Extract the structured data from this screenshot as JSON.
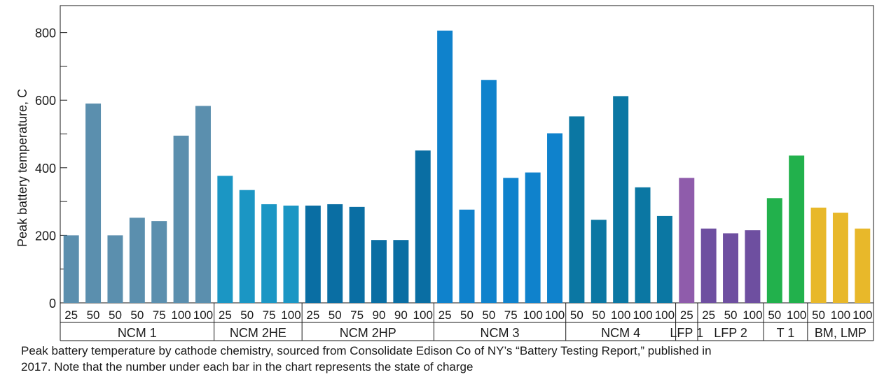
{
  "chart_data": {
    "type": "bar",
    "ylabel": "Peak battery temperature, C",
    "xlabel": "",
    "ylim": [
      0,
      880
    ],
    "yticks": [
      0,
      200,
      400,
      600,
      800
    ],
    "grid": false,
    "groups": [
      {
        "name": "NCM 1",
        "color": "#5b8fae",
        "categories": [
          "25",
          "50",
          "50",
          "50",
          "75",
          "100",
          "100"
        ],
        "values": [
          200,
          590,
          200,
          252,
          242,
          495,
          583
        ]
      },
      {
        "name": "NCM 2HE",
        "color": "#1b96c4",
        "categories": [
          "25",
          "50",
          "75",
          "100"
        ],
        "values": [
          376,
          334,
          292,
          288
        ]
      },
      {
        "name": "NCM 2HP",
        "color": "#0a6ea3",
        "categories": [
          "25",
          "50",
          "75",
          "90",
          "90",
          "100"
        ],
        "values": [
          288,
          292,
          284,
          186,
          186,
          451
        ]
      },
      {
        "name": "NCM 3",
        "color": "#0f82cc",
        "categories": [
          "25",
          "50",
          "50",
          "75",
          "100",
          "100"
        ],
        "values": [
          806,
          276,
          660,
          370,
          386,
          502
        ]
      },
      {
        "name": "NCM 4",
        "color": "#0b77a3",
        "categories": [
          "50",
          "50",
          "100",
          "100",
          "100"
        ],
        "values": [
          552,
          246,
          612,
          342,
          257
        ]
      },
      {
        "name": "LFP 1",
        "color": "#8f5cab",
        "categories": [
          "25"
        ],
        "values": [
          370
        ]
      },
      {
        "name": "LFP 2",
        "color": "#6e4fa0",
        "categories": [
          "25",
          "50",
          "100"
        ],
        "values": [
          220,
          206,
          215
        ]
      },
      {
        "name": "T 1",
        "color": "#22b14c",
        "categories": [
          "50",
          "100"
        ],
        "values": [
          310,
          436
        ]
      },
      {
        "name": "BM, LMP",
        "color": "#e8b82a",
        "categories": [
          "50",
          "100",
          "100"
        ],
        "values": [
          282,
          267,
          220
        ]
      }
    ]
  },
  "caption": {
    "line1": "Peak battery temperature by cathode chemistry, sourced from Consolidate Edison Co of NY’s “Battery Testing Report,” published in",
    "line2": "2017. Note that the number under each bar in the chart represents the state of charge"
  }
}
